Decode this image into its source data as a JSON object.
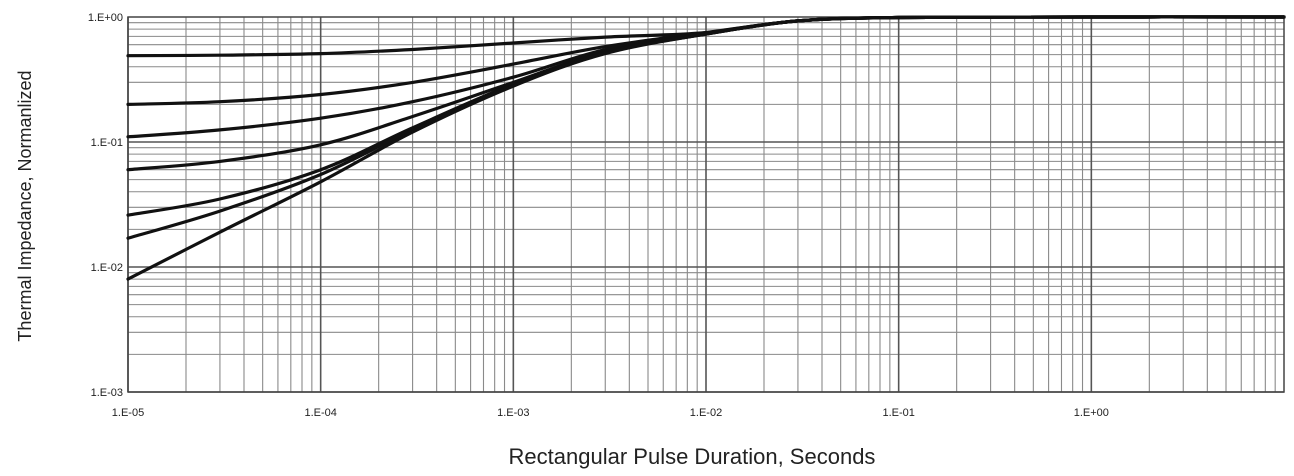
{
  "chart_data": {
    "type": "line",
    "title": "",
    "xlabel": "Rectangular Pulse Duration, Seconds",
    "ylabel": "Thermal Impedance, Normanlized",
    "x_scale": "log",
    "y_scale": "log",
    "xlim": [
      1e-05,
      10
    ],
    "ylim": [
      0.001,
      1
    ],
    "x_tick_labels": [
      "1.E-05",
      "1.E-04",
      "1.E-03",
      "1.E-02",
      "1.E-01",
      "1.E+00"
    ],
    "x_tick_values": [
      1e-05,
      0.0001,
      0.001,
      0.01,
      0.1,
      1
    ],
    "y_tick_labels": [
      "1.E+00",
      "1.E-01",
      "1.E-02",
      "1.E-03"
    ],
    "y_tick_values": [
      1,
      0.1,
      0.01,
      0.001
    ],
    "grid": true,
    "legend": "none",
    "line_color": "#111111",
    "series": [
      {
        "x": [
          1e-05,
          3e-05,
          0.0001,
          0.0003,
          0.001,
          0.003,
          0.01,
          0.03,
          0.1,
          1,
          10
        ],
        "y": [
          0.49,
          0.495,
          0.51,
          0.55,
          0.62,
          0.69,
          0.75,
          0.93,
          0.99,
          1.0,
          1.0
        ]
      },
      {
        "x": [
          1e-05,
          3e-05,
          0.0001,
          0.0003,
          0.001,
          0.003,
          0.01,
          0.03,
          0.1,
          1,
          10
        ],
        "y": [
          0.2,
          0.21,
          0.24,
          0.3,
          0.42,
          0.58,
          0.75,
          0.93,
          0.99,
          1.0,
          1.0
        ]
      },
      {
        "x": [
          1e-05,
          3e-05,
          0.0001,
          0.0003,
          0.001,
          0.003,
          0.01,
          0.03,
          0.1,
          1,
          10
        ],
        "y": [
          0.11,
          0.125,
          0.155,
          0.21,
          0.33,
          0.55,
          0.74,
          0.93,
          0.99,
          1.0,
          1.0
        ]
      },
      {
        "x": [
          1e-05,
          3e-05,
          0.0001,
          0.0003,
          0.001,
          0.003,
          0.01,
          0.03,
          0.1,
          1,
          10
        ],
        "y": [
          0.06,
          0.07,
          0.095,
          0.16,
          0.3,
          0.53,
          0.74,
          0.93,
          0.99,
          1.0,
          1.0
        ]
      },
      {
        "x": [
          1e-05,
          3e-05,
          0.0001,
          0.0003,
          0.001,
          0.003,
          0.01,
          0.03,
          0.1,
          1,
          10
        ],
        "y": [
          0.026,
          0.035,
          0.06,
          0.13,
          0.29,
          0.52,
          0.73,
          0.93,
          0.99,
          1.0,
          1.0
        ]
      },
      {
        "x": [
          1e-05,
          3e-05,
          0.0001,
          0.0003,
          0.001,
          0.003,
          0.01,
          0.03,
          0.1,
          1,
          10
        ],
        "y": [
          0.017,
          0.028,
          0.055,
          0.125,
          0.285,
          0.52,
          0.73,
          0.93,
          0.99,
          1.0,
          1.0
        ]
      },
      {
        "x": [
          1e-05,
          3e-05,
          0.0001,
          0.0003,
          0.001,
          0.003,
          0.01,
          0.03,
          0.1,
          1,
          10
        ],
        "y": [
          0.008,
          0.019,
          0.048,
          0.12,
          0.28,
          0.51,
          0.73,
          0.93,
          0.99,
          1.0,
          1.0
        ]
      }
    ]
  }
}
